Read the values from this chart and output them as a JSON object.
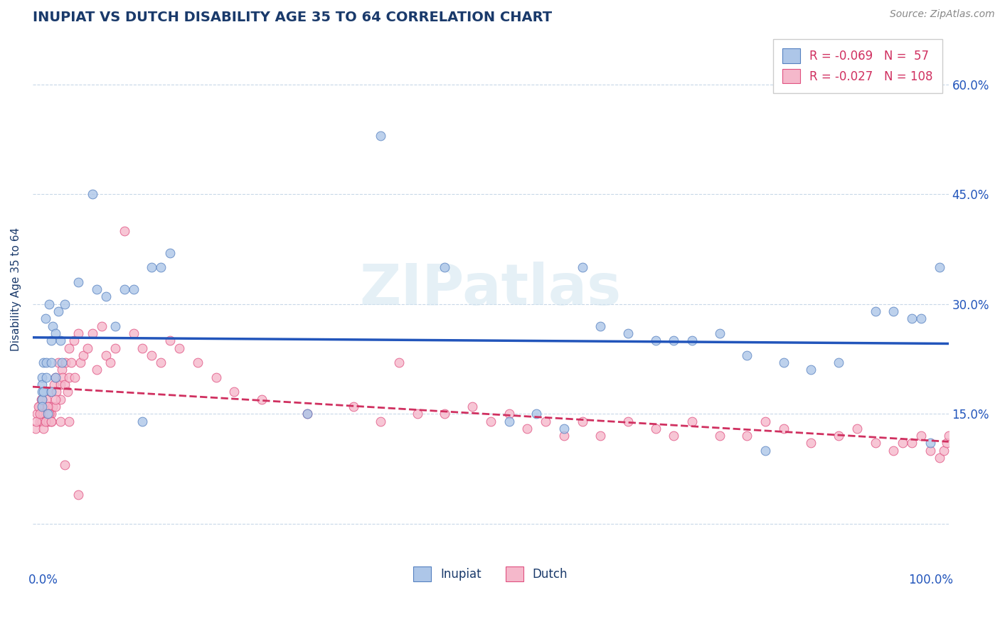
{
  "title": "INUPIAT VS DUTCH DISABILITY AGE 35 TO 64 CORRELATION CHART",
  "source": "Source: ZipAtlas.com",
  "ylabel": "Disability Age 35 to 64",
  "y_ticks": [
    0.0,
    0.15,
    0.3,
    0.45,
    0.6
  ],
  "y_tick_labels": [
    "",
    "15.0%",
    "30.0%",
    "45.0%",
    "60.0%"
  ],
  "x_range": [
    0.0,
    1.0
  ],
  "y_range": [
    -0.03,
    0.67
  ],
  "inupiat_R": -0.069,
  "inupiat_N": 57,
  "dutch_R": -0.027,
  "dutch_N": 108,
  "inupiat_color": "#adc6e8",
  "dutch_color": "#f5b8cb",
  "inupiat_edge_color": "#5580c0",
  "dutch_edge_color": "#e05080",
  "inupiat_line_color": "#2255bb",
  "dutch_line_color": "#d03060",
  "background_color": "#ffffff",
  "grid_color": "#c8d8e8",
  "title_color": "#1a3a6b",
  "label_color": "#2255bb",
  "watermark": "ZIPatlas",
  "inupiat_x": [
    0.01,
    0.01,
    0.01,
    0.01,
    0.01,
    0.012,
    0.012,
    0.014,
    0.015,
    0.015,
    0.016,
    0.018,
    0.02,
    0.02,
    0.02,
    0.022,
    0.025,
    0.025,
    0.028,
    0.03,
    0.032,
    0.035,
    0.05,
    0.065,
    0.07,
    0.08,
    0.09,
    0.1,
    0.11,
    0.12,
    0.13,
    0.14,
    0.15,
    0.3,
    0.38,
    0.45,
    0.52,
    0.55,
    0.58,
    0.6,
    0.62,
    0.65,
    0.68,
    0.7,
    0.72,
    0.75,
    0.78,
    0.8,
    0.82,
    0.85,
    0.88,
    0.92,
    0.94,
    0.96,
    0.97,
    0.98,
    0.99
  ],
  "inupiat_y": [
    0.2,
    0.19,
    0.18,
    0.17,
    0.16,
    0.22,
    0.18,
    0.28,
    0.22,
    0.2,
    0.15,
    0.3,
    0.25,
    0.22,
    0.18,
    0.27,
    0.26,
    0.2,
    0.29,
    0.25,
    0.22,
    0.3,
    0.33,
    0.45,
    0.32,
    0.31,
    0.27,
    0.32,
    0.32,
    0.14,
    0.35,
    0.35,
    0.37,
    0.15,
    0.53,
    0.35,
    0.14,
    0.15,
    0.13,
    0.35,
    0.27,
    0.26,
    0.25,
    0.25,
    0.25,
    0.26,
    0.23,
    0.1,
    0.22,
    0.21,
    0.22,
    0.29,
    0.29,
    0.28,
    0.28,
    0.11,
    0.35
  ],
  "dutch_x": [
    0.005,
    0.007,
    0.008,
    0.009,
    0.01,
    0.01,
    0.01,
    0.012,
    0.013,
    0.014,
    0.015,
    0.015,
    0.016,
    0.017,
    0.018,
    0.019,
    0.02,
    0.02,
    0.02,
    0.022,
    0.023,
    0.025,
    0.025,
    0.026,
    0.028,
    0.03,
    0.03,
    0.032,
    0.033,
    0.035,
    0.036,
    0.038,
    0.04,
    0.04,
    0.042,
    0.045,
    0.046,
    0.05,
    0.052,
    0.055,
    0.06,
    0.065,
    0.07,
    0.075,
    0.08,
    0.085,
    0.09,
    0.1,
    0.11,
    0.12,
    0.13,
    0.14,
    0.15,
    0.16,
    0.18,
    0.2,
    0.22,
    0.25,
    0.3,
    0.35,
    0.38,
    0.4,
    0.42,
    0.45,
    0.48,
    0.5,
    0.52,
    0.54,
    0.56,
    0.58,
    0.6,
    0.62,
    0.65,
    0.68,
    0.7,
    0.72,
    0.75,
    0.78,
    0.8,
    0.82,
    0.85,
    0.88,
    0.9,
    0.92,
    0.94,
    0.95,
    0.96,
    0.97,
    0.98,
    0.99,
    0.995,
    0.998,
    1.0,
    0.003,
    0.004,
    0.006,
    0.008,
    0.01,
    0.012,
    0.014,
    0.016,
    0.018,
    0.02,
    0.025,
    0.03,
    0.035,
    0.04,
    0.05
  ],
  "dutch_y": [
    0.15,
    0.16,
    0.14,
    0.17,
    0.15,
    0.14,
    0.16,
    0.15,
    0.16,
    0.15,
    0.14,
    0.17,
    0.15,
    0.14,
    0.16,
    0.15,
    0.18,
    0.15,
    0.14,
    0.16,
    0.19,
    0.2,
    0.16,
    0.18,
    0.22,
    0.19,
    0.17,
    0.21,
    0.2,
    0.19,
    0.22,
    0.18,
    0.24,
    0.2,
    0.22,
    0.25,
    0.2,
    0.26,
    0.22,
    0.23,
    0.24,
    0.26,
    0.21,
    0.27,
    0.23,
    0.22,
    0.24,
    0.4,
    0.26,
    0.24,
    0.23,
    0.22,
    0.25,
    0.24,
    0.22,
    0.2,
    0.18,
    0.17,
    0.15,
    0.16,
    0.14,
    0.22,
    0.15,
    0.15,
    0.16,
    0.14,
    0.15,
    0.13,
    0.14,
    0.12,
    0.14,
    0.12,
    0.14,
    0.13,
    0.12,
    0.14,
    0.12,
    0.12,
    0.14,
    0.13,
    0.11,
    0.12,
    0.13,
    0.11,
    0.1,
    0.11,
    0.11,
    0.12,
    0.1,
    0.09,
    0.1,
    0.11,
    0.12,
    0.13,
    0.14,
    0.16,
    0.15,
    0.17,
    0.13,
    0.14,
    0.16,
    0.15,
    0.14,
    0.17,
    0.14,
    0.08,
    0.14,
    0.04
  ]
}
